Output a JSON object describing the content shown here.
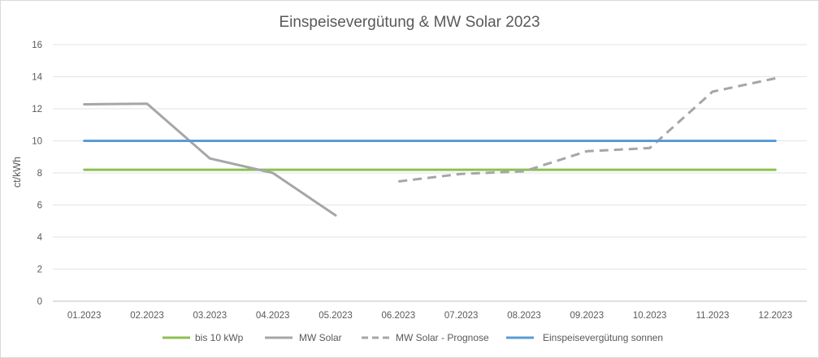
{
  "chart_data": {
    "type": "line",
    "title": "Einspeisevergütung & MW Solar 2023",
    "xlabel": "",
    "ylabel": "ct/kWh",
    "ylim": [
      0,
      16
    ],
    "ytick_step": 2,
    "grid": "horizontal",
    "legend_position": "bottom",
    "categories": [
      "01.2023",
      "02.2023",
      "03.2023",
      "04.2023",
      "05.2023",
      "06.2023",
      "07.2023",
      "08.2023",
      "09.2023",
      "10.2023",
      "11.2023",
      "12.2023"
    ],
    "series": [
      {
        "name": "bis 10 kWp",
        "color": "#8cc152",
        "dash": false,
        "values": [
          8.2,
          8.2,
          8.2,
          8.2,
          8.2,
          8.2,
          8.2,
          8.2,
          8.2,
          8.2,
          8.2,
          8.2
        ]
      },
      {
        "name": "MW Solar",
        "color": "#a6a6a6",
        "dash": false,
        "values": [
          12.28,
          12.32,
          8.9,
          8.0,
          5.35,
          null,
          null,
          null,
          null,
          null,
          null,
          null
        ]
      },
      {
        "name": "MW Solar - Prognose",
        "color": "#a6a6a6",
        "dash": true,
        "values": [
          null,
          null,
          null,
          null,
          null,
          7.47,
          7.94,
          8.1,
          9.35,
          9.55,
          13.07,
          13.9
        ]
      },
      {
        "name": "Einspeisevergütung sonnen",
        "color": "#5b9bd5",
        "dash": false,
        "values": [
          10,
          10,
          10,
          10,
          10,
          10,
          10,
          10,
          10,
          10,
          10,
          10
        ]
      }
    ]
  }
}
